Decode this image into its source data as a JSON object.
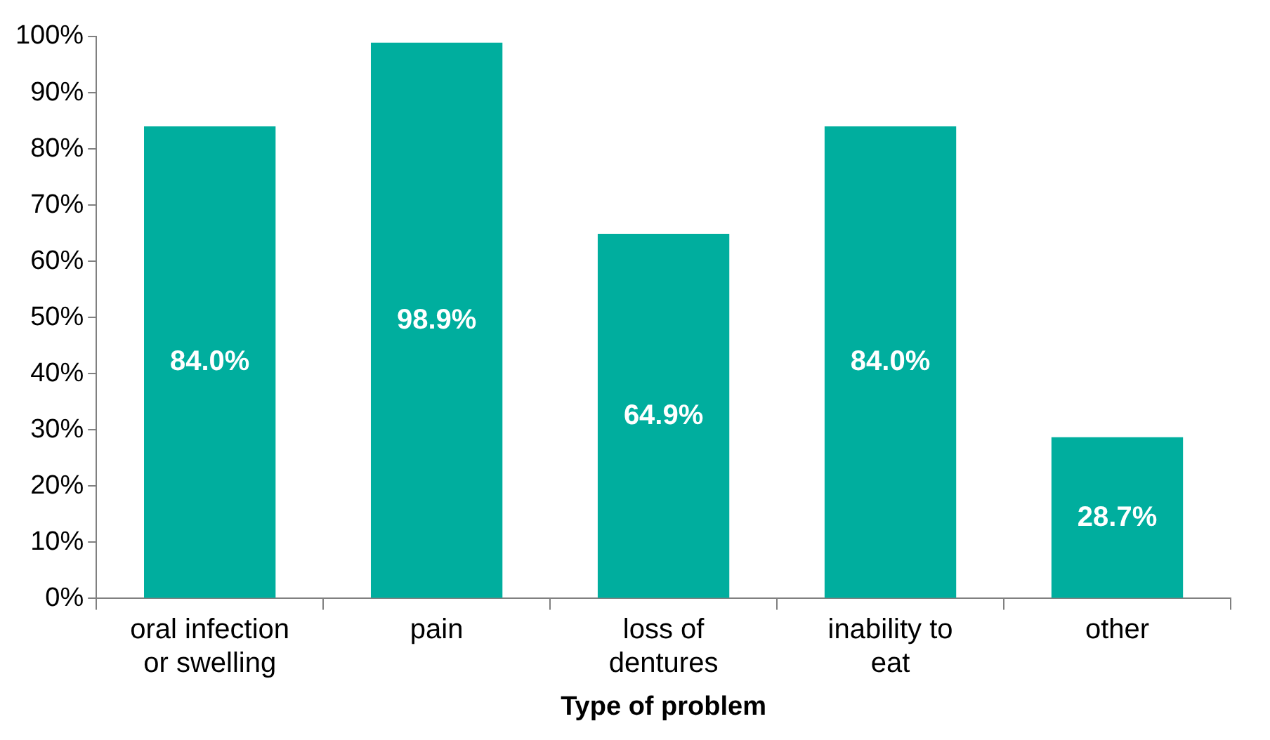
{
  "chart_data": {
    "type": "bar",
    "xlabel": "Type of problem",
    "categories": [
      "oral infection or swelling",
      "pain",
      "loss of dentures",
      "inability to eat",
      "other"
    ],
    "values": [
      84.0,
      98.9,
      64.9,
      84.0,
      28.7
    ],
    "color": "#00ae9e",
    "value_labels": [
      "84.0%",
      "98.9%",
      "64.9%",
      "84.0%",
      "28.7%"
    ],
    "ylim": [
      0,
      100
    ],
    "yticks": [
      {
        "value": 0,
        "label": "0%"
      },
      {
        "value": 10,
        "label": "10%"
      },
      {
        "value": 20,
        "label": "20%"
      },
      {
        "value": 30,
        "label": "30%"
      },
      {
        "value": 40,
        "label": "40%"
      },
      {
        "value": 50,
        "label": "50%"
      },
      {
        "value": 60,
        "label": "60%"
      },
      {
        "value": 70,
        "label": "70%"
      },
      {
        "value": 80,
        "label": "80%"
      },
      {
        "value": 90,
        "label": "90%"
      },
      {
        "value": 100,
        "label": "100%"
      }
    ],
    "grid": false,
    "legend": false
  }
}
